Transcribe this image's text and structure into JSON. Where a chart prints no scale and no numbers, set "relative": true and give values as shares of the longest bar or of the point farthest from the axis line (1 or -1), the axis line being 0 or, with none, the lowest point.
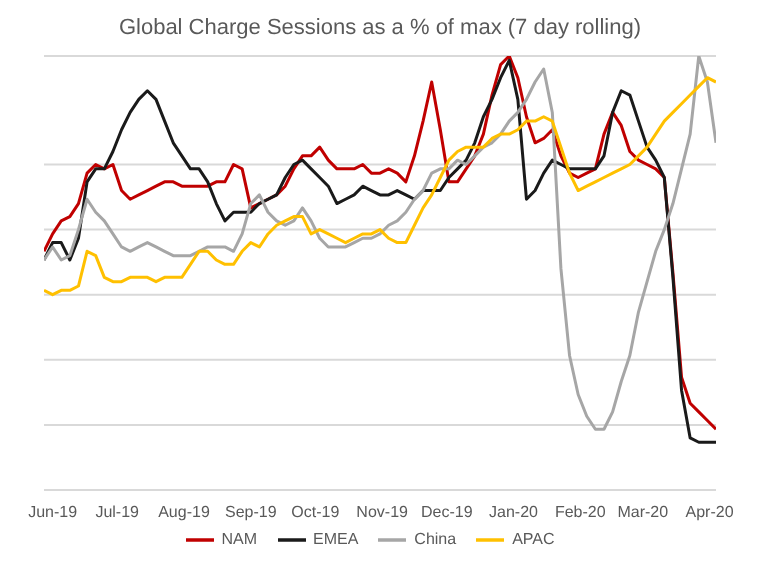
{
  "chart_data": {
    "type": "line",
    "title": "Global Charge Sessions as a % of max (7 day rolling)",
    "relative": true,
    "grid": "y",
    "legend": "bottom",
    "marker": "none",
    "line_style": "solid",
    "x": [
      "2019-05-28",
      "2019-06-01",
      "2019-06-05",
      "2019-06-09",
      "2019-06-13",
      "2019-06-17",
      "2019-06-21",
      "2019-06-25",
      "2019-06-29",
      "2019-07-03",
      "2019-07-07",
      "2019-07-11",
      "2019-07-15",
      "2019-07-19",
      "2019-07-23",
      "2019-07-27",
      "2019-07-31",
      "2019-08-04",
      "2019-08-08",
      "2019-08-12",
      "2019-08-16",
      "2019-08-20",
      "2019-08-24",
      "2019-08-28",
      "2019-09-01",
      "2019-09-05",
      "2019-09-09",
      "2019-09-13",
      "2019-09-17",
      "2019-09-21",
      "2019-09-25",
      "2019-09-29",
      "2019-10-03",
      "2019-10-07",
      "2019-10-11",
      "2019-10-15",
      "2019-10-19",
      "2019-10-23",
      "2019-10-27",
      "2019-10-31",
      "2019-11-04",
      "2019-11-08",
      "2019-11-12",
      "2019-11-16",
      "2019-11-20",
      "2019-11-24",
      "2019-11-28",
      "2019-12-02",
      "2019-12-06",
      "2019-12-10",
      "2019-12-14",
      "2019-12-18",
      "2019-12-22",
      "2019-12-26",
      "2019-12-30",
      "2020-01-03",
      "2020-01-07",
      "2020-01-11",
      "2020-01-15",
      "2020-01-19",
      "2020-01-23",
      "2020-01-27",
      "2020-01-31",
      "2020-02-04",
      "2020-02-08",
      "2020-02-12",
      "2020-02-16",
      "2020-02-20",
      "2020-02-24",
      "2020-02-28",
      "2020-03-03",
      "2020-03-07",
      "2020-03-11",
      "2020-03-15",
      "2020-03-19",
      "2020-03-23",
      "2020-03-27",
      "2020-03-31",
      "2020-04-04"
    ],
    "xlim": [
      "2019-05-28",
      "2020-04-04"
    ],
    "xticks": [
      {
        "value": "2019-06-01",
        "label": "Jun-19"
      },
      {
        "value": "2019-07-01",
        "label": "Jul-19"
      },
      {
        "value": "2019-08-01",
        "label": "Aug-19"
      },
      {
        "value": "2019-09-01",
        "label": "Sep-19"
      },
      {
        "value": "2019-10-01",
        "label": "Oct-19"
      },
      {
        "value": "2019-11-01",
        "label": "Nov-19"
      },
      {
        "value": "2019-12-01",
        "label": "Dec-19"
      },
      {
        "value": "2020-01-01",
        "label": "Jan-20"
      },
      {
        "value": "2020-02-01",
        "label": "Feb-20"
      },
      {
        "value": "2020-03-01",
        "label": "Mar-20"
      },
      {
        "value": "2020-04-01",
        "label": "Apr-20"
      }
    ],
    "series": [
      {
        "name": "NAM",
        "color": "#c00000",
        "values": [
          0.55,
          0.59,
          0.62,
          0.63,
          0.66,
          0.73,
          0.75,
          0.74,
          0.75,
          0.69,
          0.67,
          0.68,
          0.69,
          0.7,
          0.71,
          0.71,
          0.7,
          0.7,
          0.7,
          0.7,
          0.71,
          0.71,
          0.75,
          0.74,
          0.65,
          0.66,
          0.67,
          0.68,
          0.7,
          0.74,
          0.77,
          0.77,
          0.79,
          0.76,
          0.74,
          0.74,
          0.74,
          0.75,
          0.73,
          0.73,
          0.74,
          0.73,
          0.71,
          0.77,
          0.85,
          0.94,
          0.83,
          0.71,
          0.71,
          0.74,
          0.77,
          0.82,
          0.91,
          0.98,
          1.0,
          0.95,
          0.86,
          0.8,
          0.81,
          0.83,
          0.77,
          0.73,
          0.72,
          0.73,
          0.74,
          0.82,
          0.87,
          0.84,
          0.78,
          0.76,
          0.75,
          0.74,
          0.72,
          0.5,
          0.26,
          0.2,
          0.18,
          0.16,
          0.14
        ]
      },
      {
        "name": "EMEA",
        "color": "#1a1a1a",
        "values": [
          0.53,
          0.57,
          0.57,
          0.53,
          0.58,
          0.71,
          0.74,
          0.74,
          0.78,
          0.83,
          0.87,
          0.9,
          0.92,
          0.9,
          0.85,
          0.8,
          0.77,
          0.74,
          0.74,
          0.71,
          0.66,
          0.62,
          0.64,
          0.64,
          0.64,
          0.66,
          0.67,
          0.68,
          0.72,
          0.75,
          0.76,
          0.74,
          0.72,
          0.7,
          0.66,
          0.67,
          0.68,
          0.7,
          0.69,
          0.68,
          0.68,
          0.69,
          0.68,
          0.67,
          0.69,
          0.69,
          0.69,
          0.72,
          0.74,
          0.76,
          0.8,
          0.86,
          0.9,
          0.95,
          0.99,
          0.9,
          0.67,
          0.69,
          0.73,
          0.76,
          0.75,
          0.74,
          0.74,
          0.74,
          0.74,
          0.77,
          0.87,
          0.92,
          0.91,
          0.85,
          0.79,
          0.76,
          0.72,
          0.49,
          0.23,
          0.12,
          0.11,
          0.11,
          0.11
        ]
      },
      {
        "name": "China",
        "color": "#a6a6a6",
        "values": [
          0.53,
          0.56,
          0.53,
          0.54,
          0.6,
          0.67,
          0.64,
          0.62,
          0.59,
          0.56,
          0.55,
          0.56,
          0.57,
          0.56,
          0.55,
          0.54,
          0.54,
          0.54,
          0.55,
          0.56,
          0.56,
          0.56,
          0.55,
          0.59,
          0.66,
          0.68,
          0.64,
          0.62,
          0.61,
          0.62,
          0.65,
          0.62,
          0.58,
          0.56,
          0.56,
          0.56,
          0.57,
          0.58,
          0.58,
          0.59,
          0.61,
          0.62,
          0.64,
          0.67,
          0.69,
          0.73,
          0.74,
          0.74,
          0.76,
          0.75,
          0.77,
          0.79,
          0.8,
          0.82,
          0.85,
          0.87,
          0.9,
          0.94,
          0.97,
          0.87,
          0.51,
          0.31,
          0.22,
          0.17,
          0.14,
          0.14,
          0.18,
          0.25,
          0.31,
          0.41,
          0.48,
          0.55,
          0.6,
          0.66,
          0.74,
          0.82,
          1.0,
          0.94,
          0.8
        ]
      },
      {
        "name": "APAC",
        "color": "#ffc000",
        "values": [
          0.46,
          0.45,
          0.46,
          0.46,
          0.47,
          0.55,
          0.54,
          0.49,
          0.48,
          0.48,
          0.49,
          0.49,
          0.49,
          0.48,
          0.49,
          0.49,
          0.49,
          0.52,
          0.55,
          0.55,
          0.53,
          0.52,
          0.52,
          0.55,
          0.57,
          0.56,
          0.59,
          0.61,
          0.62,
          0.63,
          0.63,
          0.59,
          0.6,
          0.59,
          0.58,
          0.57,
          0.58,
          0.59,
          0.59,
          0.6,
          0.58,
          0.57,
          0.57,
          0.61,
          0.65,
          0.68,
          0.72,
          0.76,
          0.78,
          0.79,
          0.79,
          0.79,
          0.81,
          0.82,
          0.82,
          0.83,
          0.85,
          0.85,
          0.86,
          0.85,
          0.79,
          0.73,
          0.69,
          0.7,
          0.71,
          0.72,
          0.73,
          0.74,
          0.75,
          0.77,
          0.79,
          0.82,
          0.85,
          0.87,
          0.89,
          0.91,
          0.93,
          0.95,
          0.94
        ]
      }
    ]
  }
}
